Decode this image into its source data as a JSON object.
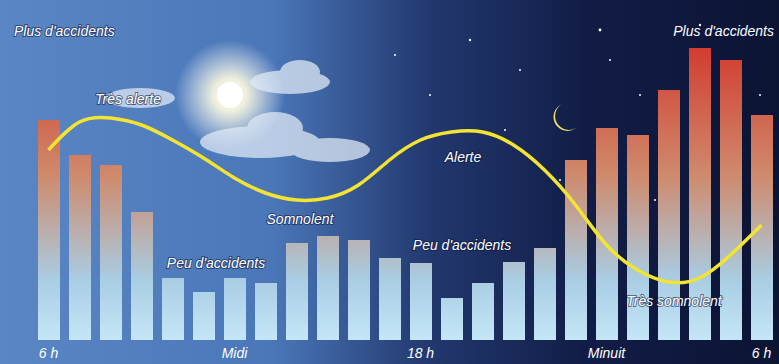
{
  "chart_data": {
    "type": "bar",
    "annotations": [
      "Plus d'accidents",
      "Très alerte",
      "Somnolent",
      "Peu d'accidents",
      "Alerte",
      "Peu d'accidents",
      "Très somnolent",
      "Plus d'accidents"
    ],
    "categories": [
      "6 h",
      null,
      null,
      null,
      null,
      null,
      "Midi",
      null,
      null,
      null,
      null,
      null,
      "18 h",
      null,
      null,
      null,
      null,
      null,
      "Minuit",
      null,
      null,
      null,
      null,
      "6 h"
    ],
    "ylim": [
      0,
      300
    ],
    "tick_labels": "x",
    "series": [
      {
        "type": "bar",
        "color": "#d2382c",
        "values": [
          220,
          185,
          175,
          128,
          62,
          48,
          62,
          57,
          97,
          104,
          100,
          82,
          77,
          42,
          57,
          78,
          92,
          180,
          212,
          205,
          250,
          292,
          280,
          225
        ]
      },
      {
        "type": "line",
        "color": "#f3e332",
        "values": [
          190,
          218,
          222,
          215,
          200,
          182,
          162,
          147,
          140,
          142,
          155,
          180,
          200,
          208,
          208,
          195,
          170,
          135,
          95,
          70,
          58,
          62,
          85,
          115
        ]
      }
    ]
  }
}
